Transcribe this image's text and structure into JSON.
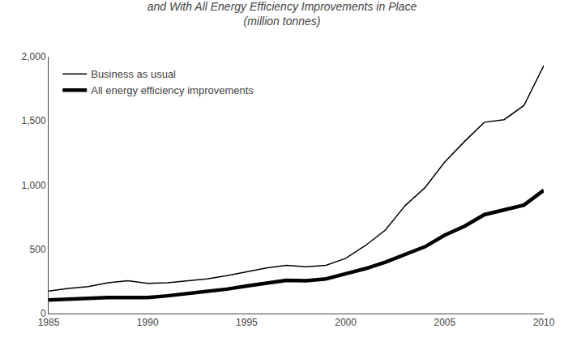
{
  "chart_data": {
    "type": "line",
    "title": "and With All Energy Efficiency Improvements in Place",
    "subtitle": "(million tonnes)",
    "x": [
      1985,
      1986,
      1987,
      1988,
      1989,
      1990,
      1991,
      1992,
      1993,
      1994,
      1995,
      1996,
      1997,
      1998,
      1999,
      2000,
      2001,
      2002,
      2003,
      2004,
      2005,
      2006,
      2007,
      2008,
      2009,
      2010
    ],
    "series": [
      {
        "name": "Business as usual",
        "color": "#000000",
        "values": [
          175,
          195,
          210,
          240,
          255,
          235,
          240,
          255,
          270,
          295,
          325,
          355,
          375,
          365,
          375,
          430,
          530,
          650,
          840,
          980,
          1180,
          1340,
          1490,
          1510,
          1620,
          1930
        ]
      },
      {
        "name": "All energy efficiency improvements",
        "color": "#000000",
        "values": [
          105,
          112,
          118,
          125,
          125,
          125,
          138,
          155,
          170,
          190,
          215,
          240,
          258,
          255,
          270,
          310,
          350,
          400,
          460,
          520,
          610,
          680,
          770,
          810,
          845,
          960
        ]
      }
    ],
    "xlim": [
      1985,
      2010
    ],
    "ylim": [
      0,
      2000
    ],
    "xticks": [
      1985,
      1990,
      1995,
      2000,
      2005,
      2010
    ],
    "yticks": [
      0,
      500,
      {
        "value": 1000,
        "label": "1,000"
      },
      {
        "value": 1500,
        "label": "1,500"
      },
      {
        "value": 2000,
        "label": "2,000"
      }
    ],
    "grid": false,
    "legend": "upper left"
  }
}
